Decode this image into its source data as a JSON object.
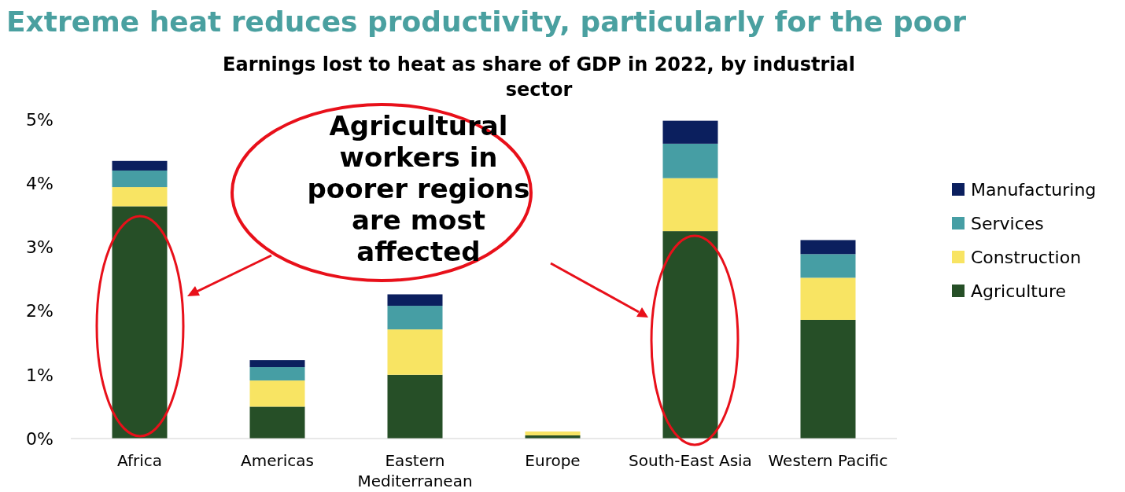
{
  "chart_data": {
    "type": "bar",
    "stacked": true,
    "title": "Extreme heat reduces productivity, particularly for the poor",
    "subtitle": "Earnings lost to heat as share of GDP in 2022, by industrial sector",
    "annotations": [
      "Agricultural workers in poorer regions are most affected"
    ],
    "categories": [
      "Africa",
      "Americas",
      "Eastern Mediterranean",
      "Europe",
      "South-East Asia",
      "Western Pacific"
    ],
    "series": [
      {
        "name": "Agriculture",
        "color": "#264f27",
        "values": [
          3.64,
          0.5,
          1.0,
          0.05,
          3.25,
          1.86
        ]
      },
      {
        "name": "Construction",
        "color": "#f8e463",
        "values": [
          0.3,
          0.41,
          0.71,
          0.06,
          0.83,
          0.66
        ]
      },
      {
        "name": "Services",
        "color": "#469ea4",
        "values": [
          0.26,
          0.21,
          0.37,
          null,
          0.54,
          0.37
        ]
      },
      {
        "name": "Manufacturing",
        "color": "#0b1f5e",
        "values": [
          0.15,
          0.11,
          0.18,
          null,
          0.36,
          0.22
        ]
      }
    ],
    "ylim": [
      0,
      5
    ],
    "yticks": [
      {
        "value": 0,
        "label": "0%"
      },
      {
        "value": 1,
        "label": "1%"
      },
      {
        "value": 2,
        "label": "2%"
      },
      {
        "value": 3,
        "label": "3%"
      },
      {
        "value": 4,
        "label": "4%"
      },
      {
        "value": 5,
        "label": "5%"
      }
    ],
    "grid": false,
    "legend": "right"
  }
}
